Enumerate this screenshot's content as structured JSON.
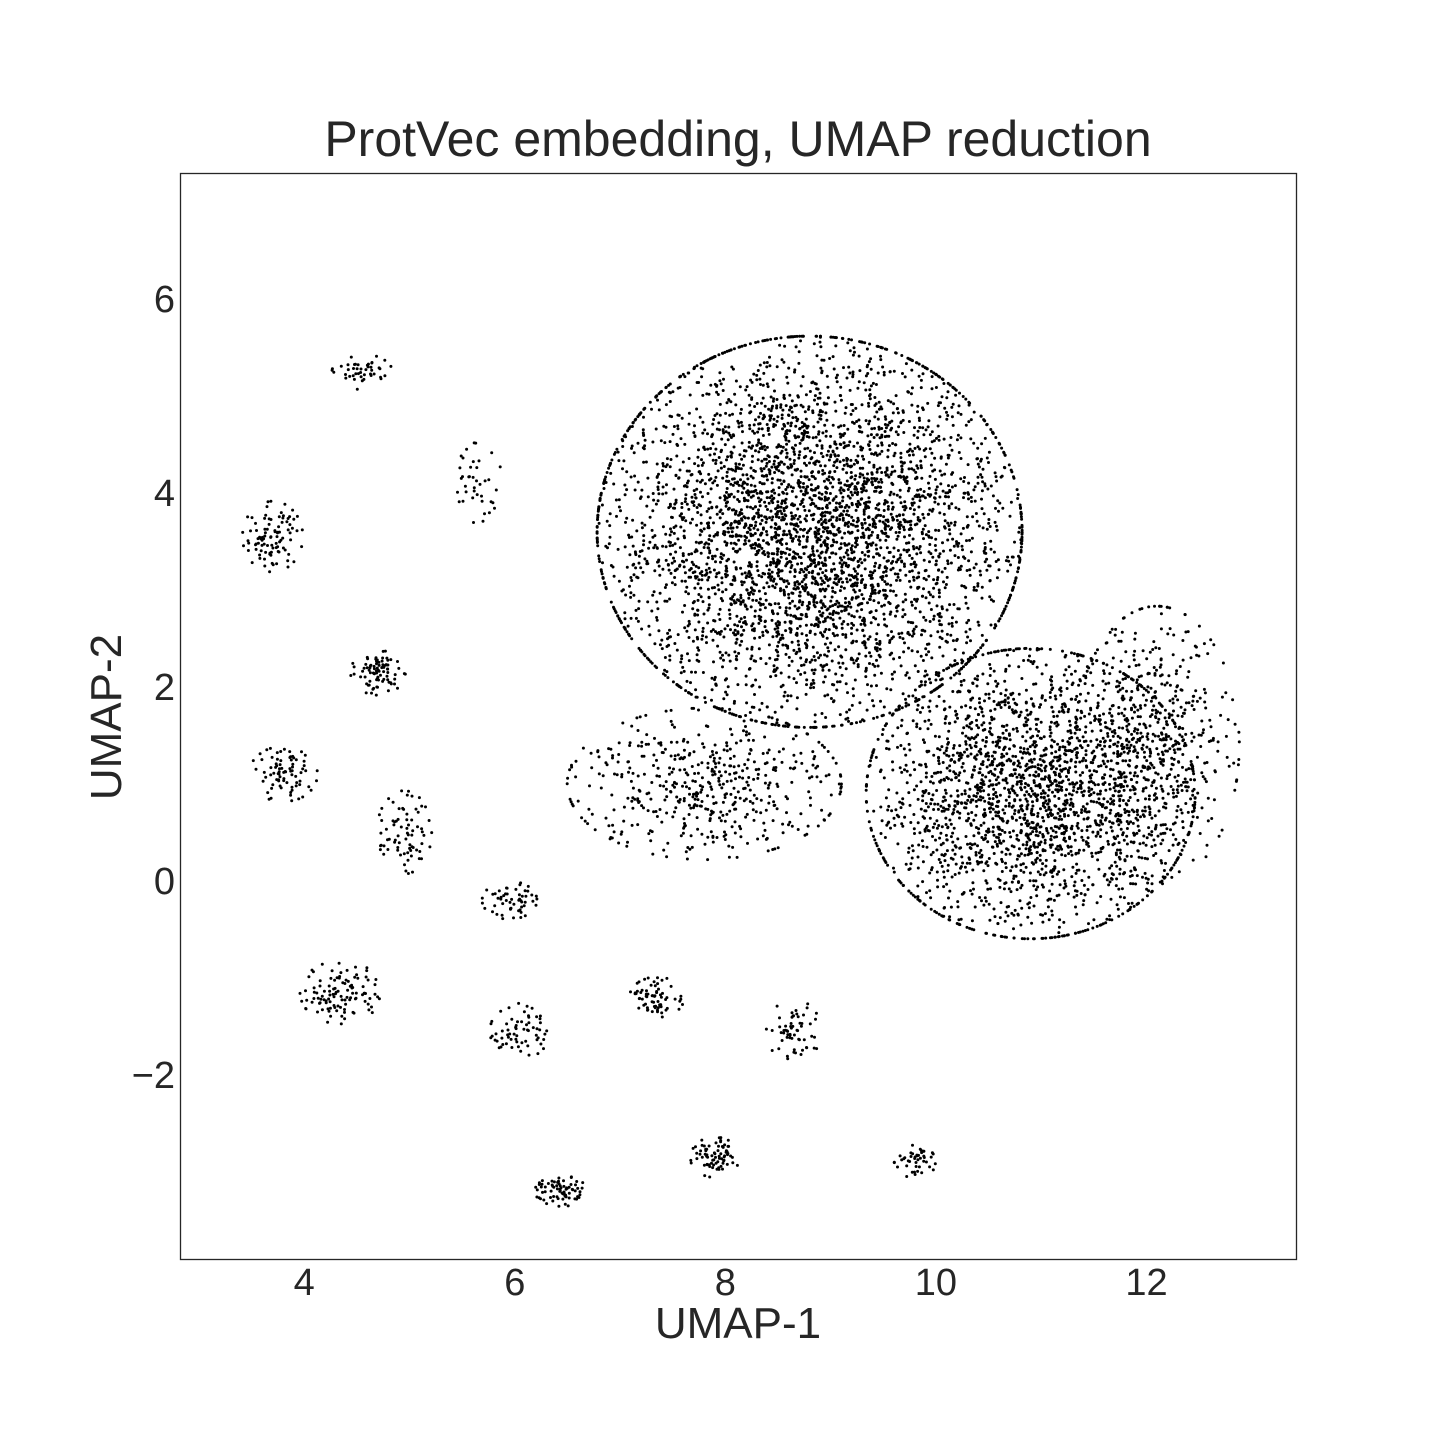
{
  "chart_data": {
    "type": "scatter",
    "title": "ProtVec embedding, UMAP reduction",
    "xlabel": "UMAP-1",
    "ylabel": "UMAP-2",
    "xlim": [
      2.82,
      13.42
    ],
    "ylim": [
      -3.9,
      7.3
    ],
    "xticks": [
      4,
      6,
      8,
      10,
      12
    ],
    "yticks": [
      -2,
      0,
      2,
      4,
      6
    ],
    "xtick_labels": [
      "4",
      "6",
      "8",
      "10",
      "12"
    ],
    "ytick_labels": [
      "−2",
      "0",
      "2",
      "4",
      "6"
    ],
    "grid": false,
    "point_color": "#000000",
    "series": [
      {
        "clusters": [
          {
            "center": [
              8.8,
              3.6
            ],
            "spread": [
              1.55,
              1.55
            ],
            "count": 4200
          },
          {
            "center": [
              10.9,
              0.9
            ],
            "spread": [
              1.2,
              1.15
            ],
            "count": 2300
          },
          {
            "center": [
              12.1,
              1.4
            ],
            "spread": [
              0.6,
              1.1
            ],
            "count": 500
          },
          {
            "center": [
              7.8,
              1.0
            ],
            "spread": [
              1.0,
              0.6
            ],
            "count": 500
          },
          {
            "center": [
              4.55,
              5.25
            ],
            "spread": [
              0.22,
              0.14
            ],
            "count": 45
          },
          {
            "center": [
              5.6,
              4.1
            ],
            "spread": [
              0.22,
              0.32
            ],
            "count": 40
          },
          {
            "center": [
              3.7,
              3.55
            ],
            "spread": [
              0.22,
              0.28
            ],
            "count": 95
          },
          {
            "center": [
              4.7,
              2.15
            ],
            "spread": [
              0.2,
              0.18
            ],
            "count": 85
          },
          {
            "center": [
              3.8,
              1.1
            ],
            "spread": [
              0.25,
              0.22
            ],
            "count": 80
          },
          {
            "center": [
              4.95,
              0.5
            ],
            "spread": [
              0.2,
              0.33
            ],
            "count": 75
          },
          {
            "center": [
              5.95,
              -0.2
            ],
            "spread": [
              0.2,
              0.15
            ],
            "count": 55
          },
          {
            "center": [
              4.35,
              -1.15
            ],
            "spread": [
              0.3,
              0.25
            ],
            "count": 110
          },
          {
            "center": [
              6.05,
              -1.55
            ],
            "spread": [
              0.22,
              0.22
            ],
            "count": 65
          },
          {
            "center": [
              7.35,
              -1.2
            ],
            "spread": [
              0.2,
              0.16
            ],
            "count": 70
          },
          {
            "center": [
              8.65,
              -1.55
            ],
            "spread": [
              0.2,
              0.25
            ],
            "count": 60
          },
          {
            "center": [
              6.45,
              -3.2
            ],
            "spread": [
              0.2,
              0.12
            ],
            "count": 75
          },
          {
            "center": [
              7.9,
              -2.85
            ],
            "spread": [
              0.18,
              0.16
            ],
            "count": 75
          },
          {
            "center": [
              9.8,
              -2.9
            ],
            "spread": [
              0.15,
              0.14
            ],
            "count": 45
          }
        ]
      }
    ]
  }
}
